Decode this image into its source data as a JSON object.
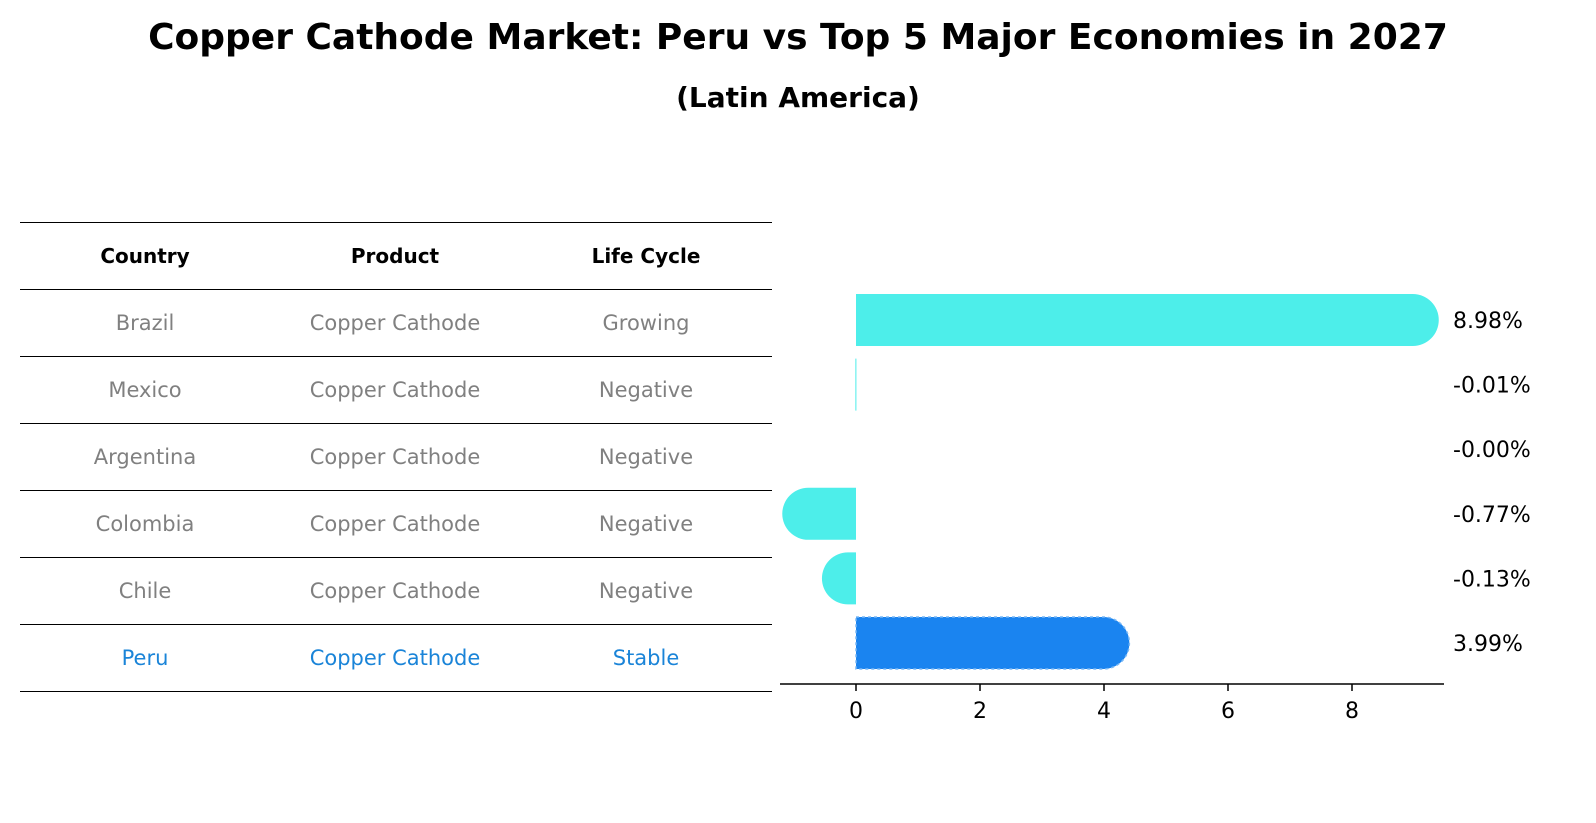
{
  "title": "Copper Cathode Market: Peru vs Top 5 Major Economies in 2027",
  "subtitle": "(Latin America)",
  "table": {
    "headers": [
      "Country",
      "Product",
      "Life Cycle"
    ],
    "rows": [
      {
        "country": "Brazil",
        "product": "Copper Cathode",
        "life_cycle": "Growing"
      },
      {
        "country": "Mexico",
        "product": "Copper Cathode",
        "life_cycle": "Negative"
      },
      {
        "country": "Argentina",
        "product": "Copper Cathode",
        "life_cycle": "Negative"
      },
      {
        "country": "Colombia",
        "product": "Copper Cathode",
        "life_cycle": "Negative"
      },
      {
        "country": "Chile",
        "product": "Copper Cathode",
        "life_cycle": "Negative"
      },
      {
        "country": "Peru",
        "product": "Copper Cathode",
        "life_cycle": "Stable"
      }
    ],
    "highlight_color": "#1a84d8",
    "text_color": "#808080"
  },
  "chart_data": {
    "type": "bar",
    "orientation": "horizontal",
    "categories": [
      "Brazil",
      "Mexico",
      "Argentina",
      "Colombia",
      "Chile",
      "Peru"
    ],
    "values": [
      8.98,
      -0.01,
      -0.0,
      -0.77,
      -0.13,
      3.99
    ],
    "value_labels": [
      "8.98%",
      "-0.01%",
      "-0.00%",
      "-0.77%",
      "-0.13%",
      "3.99%"
    ],
    "highlight_index": 5,
    "colors": {
      "default": "#4deeea",
      "highlight": "#1a84f0"
    },
    "xticks": [
      "0",
      "2",
      "4",
      "6",
      "8"
    ],
    "xlim": [
      -1.3,
      9.5
    ],
    "title": "",
    "xlabel": "",
    "ylabel": ""
  }
}
